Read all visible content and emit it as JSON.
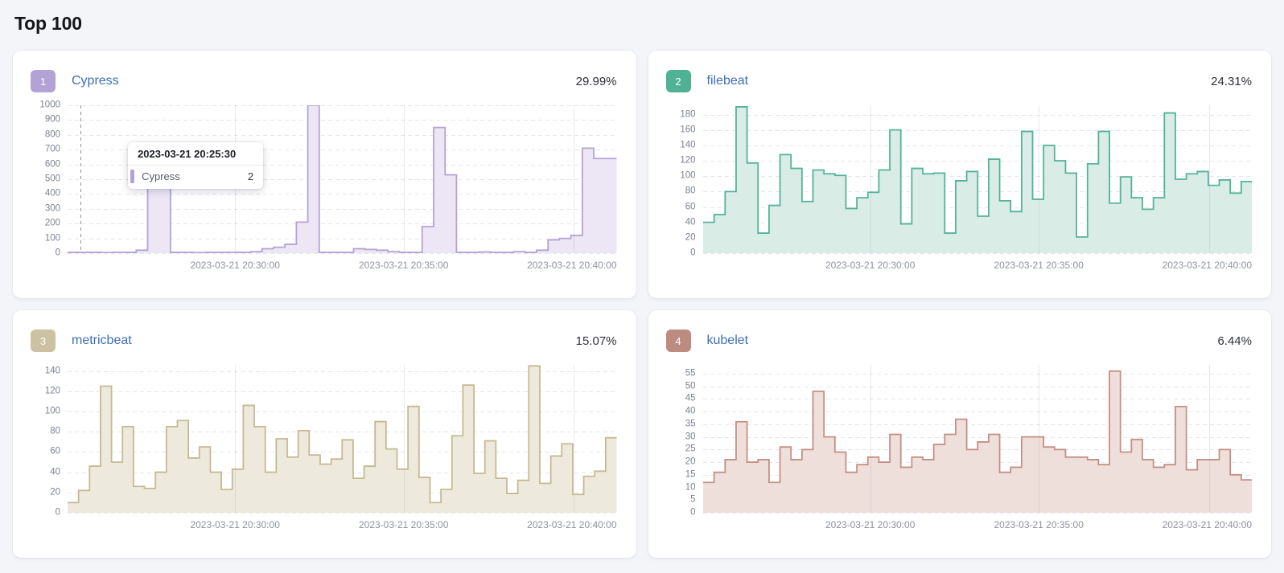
{
  "page": {
    "title": "Top 100"
  },
  "axes": {
    "x_labels": [
      "2023-03-21 20:30:00",
      "2023-03-21 20:35:00",
      "2023-03-21 20:40:00"
    ],
    "x_label_pcts": [
      30.5,
      61.2,
      null
    ],
    "gridline_x_pcts": [
      30.5,
      61.2,
      92.2
    ]
  },
  "chart_data": [
    {
      "type": "area",
      "rank": "1",
      "name": "Cypress",
      "percent": "29.99%",
      "badge_color": "#b3a2d4",
      "stroke": "#b5a3d4",
      "fill": "#ece6f5",
      "ymax_render": 1000,
      "ylim": [
        0,
        1000
      ],
      "y_ticks": [
        0,
        100,
        200,
        300,
        400,
        500,
        600,
        700,
        800,
        900,
        1000
      ],
      "values": [
        5,
        5,
        5,
        4,
        6,
        5,
        20,
        520,
        520,
        5,
        5,
        4,
        5,
        5,
        6,
        5,
        10,
        30,
        40,
        60,
        210,
        1000,
        5,
        5,
        5,
        30,
        25,
        20,
        10,
        5,
        5,
        180,
        850,
        530,
        5,
        5,
        8,
        5,
        5,
        10,
        5,
        20,
        90,
        100,
        120,
        710,
        640,
        640
      ],
      "cursor_x_pct": 2.4,
      "tooltip": {
        "title": "2023-03-21 20:25:30",
        "series": "Cypress",
        "value": "2"
      }
    },
    {
      "type": "area",
      "rank": "2",
      "name": "filebeat",
      "percent": "24.31%",
      "badge_color": "#50b195",
      "stroke": "#54b399",
      "fill": "#d9ece6",
      "ymax_render": 192,
      "ylim": [
        0,
        180
      ],
      "y_ticks": [
        0,
        20,
        40,
        60,
        80,
        100,
        120,
        140,
        160,
        180
      ],
      "values": [
        40,
        50,
        80,
        190,
        117,
        26,
        62,
        128,
        110,
        67,
        108,
        103,
        101,
        58,
        72,
        79,
        108,
        160,
        38,
        110,
        103,
        104,
        26,
        94,
        106,
        48,
        122,
        68,
        54,
        158,
        70,
        140,
        120,
        104,
        21,
        116,
        158,
        65,
        99,
        72,
        57,
        72,
        182,
        96,
        103,
        106,
        88,
        95,
        78,
        93
      ],
      "cursor_x_pct": null,
      "tooltip": null
    },
    {
      "type": "area",
      "rank": "3",
      "name": "metricbeat",
      "percent": "15.07%",
      "badge_color": "#ccc1a2",
      "stroke": "#c6b992",
      "fill": "#edeadd",
      "ymax_render": 146,
      "ylim": [
        0,
        140
      ],
      "y_ticks": [
        0,
        20,
        40,
        60,
        80,
        100,
        120,
        140
      ],
      "values": [
        10,
        22,
        46,
        125,
        50,
        85,
        26,
        24,
        40,
        85,
        91,
        54,
        65,
        40,
        23,
        43,
        106,
        85,
        40,
        73,
        55,
        81,
        57,
        48,
        53,
        72,
        34,
        46,
        90,
        63,
        43,
        105,
        35,
        10,
        23,
        76,
        126,
        39,
        71,
        34,
        19,
        32,
        145,
        29,
        56,
        68,
        18,
        36,
        41,
        74
      ],
      "cursor_x_pct": null,
      "tooltip": null
    },
    {
      "type": "area",
      "rank": "4",
      "name": "kubelet",
      "percent": "6.44%",
      "badge_color": "#bd8c81",
      "stroke": "#c49086",
      "fill": "#efdfda",
      "ymax_render": 58.5,
      "ylim": [
        0,
        55
      ],
      "y_ticks": [
        0,
        5,
        10,
        15,
        20,
        25,
        30,
        35,
        40,
        45,
        50,
        55
      ],
      "values": [
        12,
        16,
        21,
        36,
        20,
        21,
        12,
        26,
        21,
        25,
        48,
        30,
        24,
        16,
        19,
        22,
        20,
        31,
        18,
        22,
        21,
        27,
        31,
        37,
        25,
        28,
        31,
        16,
        18,
        30,
        30,
        26,
        25,
        22,
        22,
        21,
        19,
        56,
        24,
        29,
        21,
        18,
        19,
        42,
        17,
        21,
        21,
        25,
        15,
        13
      ],
      "cursor_x_pct": null,
      "tooltip": null
    }
  ]
}
